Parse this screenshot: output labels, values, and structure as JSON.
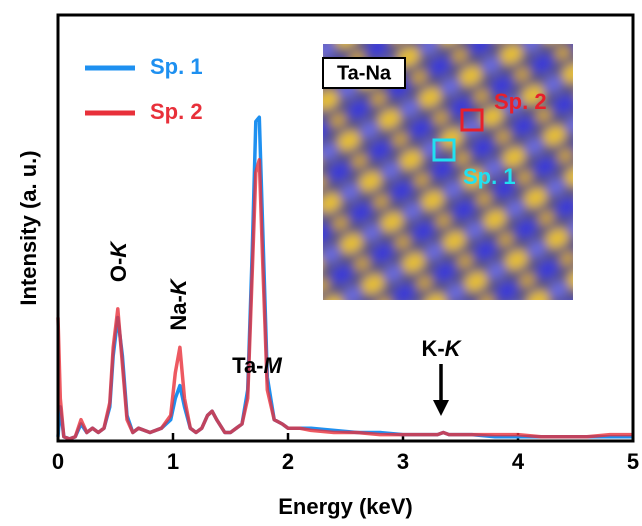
{
  "chart_data": {
    "type": "line",
    "xlabel": "Energy (keV)",
    "ylabel": "Intensity (a. u.)",
    "xlim": [
      0,
      5
    ],
    "ylim": [
      0,
      100
    ],
    "xticks": [
      0,
      1,
      2,
      3,
      4,
      5
    ],
    "x": [
      0,
      0.02,
      0.05,
      0.1,
      0.15,
      0.2,
      0.25,
      0.3,
      0.35,
      0.4,
      0.45,
      0.48,
      0.52,
      0.56,
      0.6,
      0.65,
      0.7,
      0.8,
      0.9,
      0.98,
      1.02,
      1.06,
      1.1,
      1.15,
      1.2,
      1.25,
      1.3,
      1.34,
      1.38,
      1.45,
      1.5,
      1.55,
      1.6,
      1.65,
      1.69,
      1.72,
      1.75,
      1.78,
      1.82,
      1.88,
      1.95,
      2.0,
      2.1,
      2.2,
      2.4,
      2.6,
      2.8,
      3.0,
      3.2,
      3.3,
      3.35,
      3.4,
      3.6,
      3.8,
      4.0,
      4.2,
      4.4,
      4.6,
      4.8,
      5.0
    ],
    "series": [
      {
        "name": "Sp. 1",
        "color": "#1e90f0",
        "values": [
          1,
          8,
          1,
          0.5,
          1,
          4,
          2,
          3,
          2,
          3,
          8,
          20,
          29,
          20,
          6,
          2,
          3,
          2,
          3,
          5,
          10,
          13,
          8,
          3,
          2,
          3,
          6,
          7,
          5,
          2,
          2,
          3,
          4,
          12,
          45,
          75,
          76,
          50,
          15,
          5,
          4,
          3,
          3,
          3,
          2.5,
          2,
          2,
          1.5,
          1.5,
          1.5,
          2,
          1.5,
          1.5,
          1,
          1,
          1,
          1,
          1,
          1,
          1
        ]
      },
      {
        "name": "Sp. 2",
        "color": "#e8303a",
        "values": [
          29,
          10,
          1,
          0.5,
          1,
          5,
          2,
          3,
          2,
          3,
          9,
          22,
          31,
          18,
          5,
          2,
          3,
          2,
          3,
          6,
          16,
          22,
          10,
          3,
          2,
          3,
          6,
          7,
          5,
          2,
          2,
          3,
          4,
          10,
          40,
          63,
          66,
          42,
          12,
          5,
          4,
          3,
          3,
          2.5,
          2,
          2,
          1.5,
          1.5,
          1.5,
          1.5,
          2,
          1.5,
          1.5,
          1.5,
          1.5,
          1,
          1,
          1,
          1.5,
          1.5
        ]
      }
    ],
    "annotations": [
      {
        "parts": [
          "O-",
          "K"
        ]
      },
      {
        "parts": [
          "Na-",
          "K"
        ]
      },
      {
        "parts": [
          "Ta-",
          "M"
        ]
      },
      {
        "parts": [
          "K-",
          "K"
        ]
      }
    ],
    "inset": {
      "label": "Ta-Na",
      "markers": [
        {
          "label": "Sp. 2",
          "color": "#e8202a"
        },
        {
          "label": "Sp. 1",
          "color": "#20e0f0"
        }
      ]
    }
  }
}
